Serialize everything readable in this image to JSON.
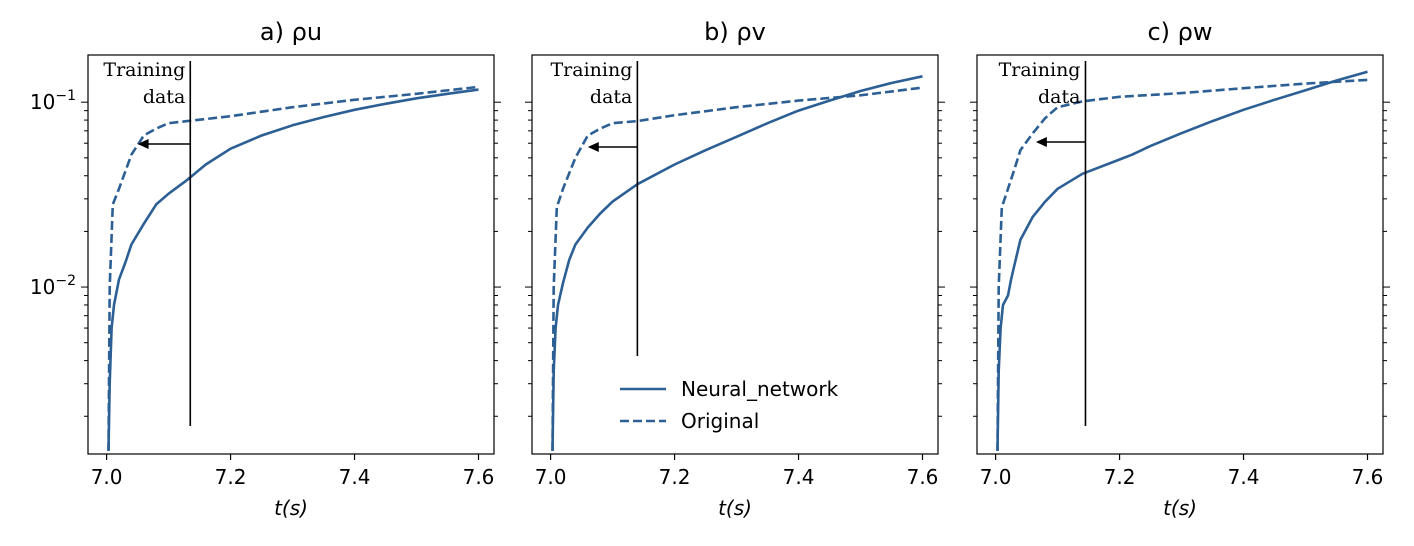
{
  "chart_data": [
    {
      "type": "line",
      "title": "a) ρu",
      "xlabel": "t(s)",
      "ylabel": "",
      "xlim": [
        6.97,
        7.625
      ],
      "ylim": [
        0.00125,
        0.18
      ],
      "yscale": "log",
      "xticks": [
        "7.0",
        "7.2",
        "7.4",
        "7.6"
      ],
      "yticks": [
        "10^-1",
        "10^-2"
      ],
      "grid": false,
      "annotation": {
        "text_line1": "Training",
        "text_line2": "data",
        "divider_x": 7.135,
        "arrow_to_x": 7.05
      },
      "series": [
        {
          "name": "Neural_network",
          "style": "solid",
          "color": "#2c5f94",
          "x": [
            7.003,
            7.005,
            7.008,
            7.012,
            7.02,
            7.03,
            7.04,
            7.06,
            7.08,
            7.1,
            7.13,
            7.16,
            7.2,
            7.25,
            7.3,
            7.35,
            7.4,
            7.45,
            7.5,
            7.55,
            7.6
          ],
          "y": [
            0.0013,
            0.003,
            0.006,
            0.008,
            0.011,
            0.0135,
            0.017,
            0.022,
            0.028,
            0.032,
            0.038,
            0.046,
            0.056,
            0.066,
            0.075,
            0.083,
            0.091,
            0.098,
            0.105,
            0.111,
            0.117
          ]
        },
        {
          "name": "Original",
          "style": "dashed",
          "color": "#2c5f94",
          "x": [
            7.003,
            7.005,
            7.01,
            7.02,
            7.04,
            7.06,
            7.08,
            7.1,
            7.13,
            7.2,
            7.3,
            7.4,
            7.5,
            7.6
          ],
          "y": [
            0.0013,
            0.01,
            0.028,
            0.034,
            0.052,
            0.066,
            0.072,
            0.077,
            0.079,
            0.084,
            0.094,
            0.103,
            0.111,
            0.121
          ]
        }
      ]
    },
    {
      "type": "line",
      "title": "b) ρv",
      "xlabel": "t(s)",
      "ylabel": "",
      "xlim": [
        6.97,
        7.625
      ],
      "ylim": [
        0.00125,
        0.18
      ],
      "yscale": "log",
      "xticks": [
        "7.0",
        "7.2",
        "7.4",
        "7.6"
      ],
      "yticks": [],
      "grid": false,
      "annotation": {
        "text_line1": "Training",
        "text_line2": "data",
        "divider_x": 7.14,
        "arrow_to_x": 7.06
      },
      "legend": {
        "placement": "lower-center",
        "entries": [
          "Neural_network",
          "Original"
        ]
      },
      "series": [
        {
          "name": "Neural_network",
          "style": "solid",
          "color": "#2c5f94",
          "x": [
            7.003,
            7.005,
            7.008,
            7.012,
            7.02,
            7.03,
            7.04,
            7.06,
            7.08,
            7.1,
            7.14,
            7.2,
            7.25,
            7.3,
            7.35,
            7.4,
            7.45,
            7.5,
            7.55,
            7.6
          ],
          "y": [
            0.0013,
            0.0035,
            0.006,
            0.008,
            0.0105,
            0.014,
            0.017,
            0.021,
            0.025,
            0.029,
            0.036,
            0.046,
            0.055,
            0.065,
            0.077,
            0.09,
            0.102,
            0.115,
            0.127,
            0.138
          ]
        },
        {
          "name": "Original",
          "style": "dashed",
          "color": "#2c5f94",
          "x": [
            7.003,
            7.005,
            7.01,
            7.02,
            7.04,
            7.06,
            7.08,
            7.1,
            7.14,
            7.2,
            7.3,
            7.4,
            7.5,
            7.6
          ],
          "y": [
            0.0013,
            0.01,
            0.027,
            0.034,
            0.05,
            0.066,
            0.072,
            0.077,
            0.079,
            0.085,
            0.094,
            0.102,
            0.109,
            0.12
          ]
        }
      ]
    },
    {
      "type": "line",
      "title": "c) ρw",
      "xlabel": "t(s)",
      "ylabel": "",
      "xlim": [
        6.97,
        7.625
      ],
      "ylim": [
        0.00125,
        0.18
      ],
      "yscale": "log",
      "xticks": [
        "7.0",
        "7.2",
        "7.4",
        "7.6"
      ],
      "yticks": [],
      "grid": false,
      "annotation": {
        "text_line1": "Training",
        "text_line2": "data",
        "divider_x": 7.145,
        "arrow_to_x": 7.065
      },
      "series": [
        {
          "name": "Neural_network",
          "style": "solid",
          "color": "#2c5f94",
          "x": [
            7.003,
            7.005,
            7.008,
            7.012,
            7.02,
            7.025,
            7.03,
            7.04,
            7.06,
            7.08,
            7.1,
            7.14,
            7.2,
            7.22,
            7.25,
            7.3,
            7.35,
            7.4,
            7.45,
            7.5,
            7.55,
            7.6
          ],
          "y": [
            0.0013,
            0.0035,
            0.006,
            0.008,
            0.009,
            0.011,
            0.013,
            0.018,
            0.024,
            0.029,
            0.034,
            0.041,
            0.049,
            0.052,
            0.058,
            0.068,
            0.079,
            0.091,
            0.103,
            0.116,
            0.131,
            0.146
          ]
        },
        {
          "name": "Original",
          "style": "dashed",
          "color": "#2c5f94",
          "x": [
            7.003,
            7.005,
            7.01,
            7.02,
            7.03,
            7.04,
            7.06,
            7.08,
            7.1,
            7.14,
            7.2,
            7.3,
            7.4,
            7.5,
            7.6
          ],
          "y": [
            0.0013,
            0.01,
            0.027,
            0.034,
            0.043,
            0.055,
            0.068,
            0.082,
            0.094,
            0.101,
            0.107,
            0.112,
            0.119,
            0.126,
            0.132
          ]
        }
      ]
    }
  ]
}
